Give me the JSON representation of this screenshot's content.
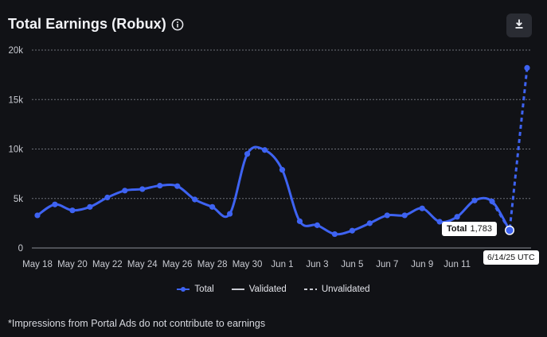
{
  "header": {
    "title": "Total Earnings (Robux)",
    "info_icon": "info-circle-icon",
    "download_icon": "download-icon"
  },
  "chart_data": {
    "type": "line",
    "title": "Total Earnings (Robux)",
    "x": [
      "May 18",
      "May 19",
      "May 20",
      "May 21",
      "May 22",
      "May 23",
      "May 24",
      "May 25",
      "May 26",
      "May 27",
      "May 28",
      "May 29",
      "May 30",
      "May 31",
      "Jun 1",
      "Jun 2",
      "Jun 3",
      "Jun 4",
      "Jun 5",
      "Jun 6",
      "Jun 7",
      "Jun 8",
      "Jun 9",
      "Jun 10",
      "Jun 11",
      "Jun 12",
      "Jun 13",
      "Jun 14",
      "Jun 15"
    ],
    "x_tick_labels": [
      "May 18",
      "May 20",
      "May 22",
      "May 24",
      "May 26",
      "May 28",
      "May 30",
      "Jun 1",
      "Jun 3",
      "Jun 5",
      "Jun 7",
      "Jun 9",
      "Jun 11"
    ],
    "ylim": [
      0,
      20000
    ],
    "y_tick_labels": [
      "0",
      "5k",
      "10k",
      "15k",
      "20k"
    ],
    "grid": true,
    "legend_position": "bottom-center",
    "series": [
      {
        "name": "Total",
        "style": "solid",
        "color": "#3e63f2",
        "values": [
          3300,
          4400,
          3800,
          4150,
          5100,
          5800,
          5950,
          6300,
          6250,
          4900,
          4150,
          3450,
          9500,
          9900,
          7900,
          2700,
          2300,
          1400,
          1750,
          2500,
          3300,
          3300,
          4000,
          2650,
          3150,
          4800,
          4700,
          1783,
          null
        ]
      },
      {
        "name": "Unvalidated",
        "style": "dashed",
        "color": "#3e63f2",
        "values": [
          null,
          null,
          null,
          null,
          null,
          null,
          null,
          null,
          null,
          null,
          null,
          null,
          null,
          null,
          null,
          null,
          null,
          null,
          null,
          null,
          null,
          null,
          null,
          null,
          null,
          null,
          4700,
          1783,
          18200
        ]
      }
    ],
    "legend": [
      {
        "name": "Total",
        "style": "line-dot"
      },
      {
        "name": "Validated",
        "style": "solid"
      },
      {
        "name": "Unvalidated",
        "style": "dashed"
      }
    ],
    "highlight": {
      "index": 27,
      "series_label": "Total",
      "value_label": "1,783",
      "date_label": "6/14/25 UTC"
    }
  },
  "colors": {
    "line": "#3e63f2",
    "grid": "#6d7078",
    "background": "#111216"
  },
  "footnote": "*Impressions from Portal Ads do not contribute to earnings"
}
